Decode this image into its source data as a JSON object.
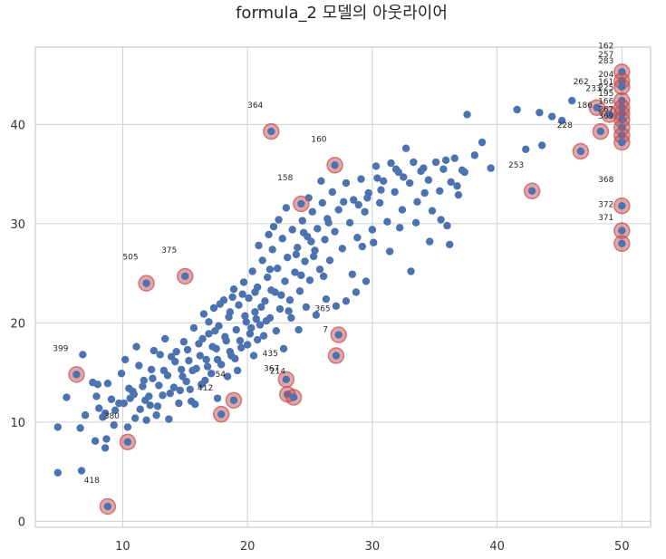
{
  "chart_data": {
    "type": "scatter",
    "title": "formula_2 모델의 아웃라이어",
    "xlabel": "",
    "ylabel": "",
    "xlim": [
      3,
      52.3
    ],
    "ylim": [
      -0.6,
      47.8
    ],
    "xticks": [
      10,
      20,
      30,
      40,
      50
    ],
    "yticks": [
      0,
      10,
      20,
      30,
      40
    ],
    "grid": true,
    "colors": {
      "points": "#4c72b0",
      "outliers": "#c44e52",
      "grid": "#d0d0d0",
      "frame": "#cccccc"
    },
    "outliers": [
      {
        "label": "162",
        "x": 50,
        "y": 45.3
      },
      {
        "label": "257",
        "x": 50,
        "y": 44.4
      },
      {
        "label": "283",
        "x": 50,
        "y": 43.8
      },
      {
        "label": "204",
        "x": 50,
        "y": 42.4
      },
      {
        "label": "161",
        "x": 50,
        "y": 41.7
      },
      {
        "label": "225",
        "x": 50,
        "y": 41.1
      },
      {
        "label": "262",
        "x": 48,
        "y": 41.7
      },
      {
        "label": "195",
        "x": 50,
        "y": 40.5
      },
      {
        "label": "166",
        "x": 50,
        "y": 39.7
      },
      {
        "label": "267",
        "x": 50,
        "y": 38.9
      },
      {
        "label": "369",
        "x": 50,
        "y": 38.2
      },
      {
        "label": "186",
        "x": 48.3,
        "y": 39.3
      },
      {
        "label": "233",
        "x": 49,
        "y": 41
      },
      {
        "label": "228",
        "x": 46.7,
        "y": 37.3
      },
      {
        "label": "253",
        "x": 42.8,
        "y": 33.3
      },
      {
        "label": "368",
        "x": 50,
        "y": 31.8
      },
      {
        "label": "372",
        "x": 50,
        "y": 29.3
      },
      {
        "label": "371",
        "x": 50,
        "y": 28
      },
      {
        "label": "364",
        "x": 21.9,
        "y": 39.3
      },
      {
        "label": "160",
        "x": 27,
        "y": 35.9
      },
      {
        "label": "158",
        "x": 24.3,
        "y": 32
      },
      {
        "label": "505",
        "x": 11.9,
        "y": 24
      },
      {
        "label": "375",
        "x": 15,
        "y": 24.7
      },
      {
        "label": "365",
        "x": 27.3,
        "y": 18.8
      },
      {
        "label": "7",
        "x": 27.1,
        "y": 16.7
      },
      {
        "label": "399",
        "x": 6.3,
        "y": 14.8
      },
      {
        "label": "435",
        "x": 23.1,
        "y": 14.3
      },
      {
        "label": "367",
        "x": 23.2,
        "y": 12.8
      },
      {
        "label": "214",
        "x": 23.7,
        "y": 12.5
      },
      {
        "label": "54",
        "x": 18.9,
        "y": 12.2
      },
      {
        "label": "412",
        "x": 17.9,
        "y": 10.8
      },
      {
        "label": "380",
        "x": 10.4,
        "y": 8
      },
      {
        "label": "418",
        "x": 8.8,
        "y": 1.5
      }
    ],
    "points": [
      [
        4.8,
        9.5
      ],
      [
        4.8,
        4.9
      ],
      [
        5.5,
        12.5
      ],
      [
        6.7,
        5.1
      ],
      [
        6.6,
        9.4
      ],
      [
        6.8,
        16.8
      ],
      [
        7,
        10.7
      ],
      [
        7.6,
        14
      ],
      [
        7.8,
        8.1
      ],
      [
        8.1,
        11.4
      ],
      [
        8.4,
        10.5
      ],
      [
        8.6,
        7.4
      ],
      [
        8.7,
        8.3
      ],
      [
        8.8,
        13.9
      ],
      [
        9.3,
        9.7
      ],
      [
        9.7,
        11.9
      ],
      [
        9.9,
        14.9
      ],
      [
        10.2,
        16.3
      ],
      [
        10.4,
        9.5
      ],
      [
        10.6,
        12.4
      ],
      [
        10.8,
        13.1
      ],
      [
        11.1,
        17.6
      ],
      [
        11.3,
        15.7
      ],
      [
        11.4,
        11.3
      ],
      [
        11.7,
        14.2
      ],
      [
        11.9,
        10.2
      ],
      [
        12.1,
        12.6
      ],
      [
        12.3,
        15.3
      ],
      [
        12.5,
        17.2
      ],
      [
        12.8,
        11.6
      ],
      [
        13,
        16.8
      ],
      [
        13.2,
        12.7
      ],
      [
        13.4,
        18.4
      ],
      [
        13.6,
        14.7
      ],
      [
        13.9,
        16.6
      ],
      [
        14.1,
        13.5
      ],
      [
        14.3,
        17.1
      ],
      [
        14.5,
        11.9
      ],
      [
        14.7,
        15.3
      ],
      [
        14.9,
        18.1
      ],
      [
        15.1,
        14.1
      ],
      [
        15.3,
        16.2
      ],
      [
        15.5,
        12.1
      ],
      [
        15.7,
        19.5
      ],
      [
        15.9,
        15.4
      ],
      [
        16.1,
        17.9
      ],
      [
        16.3,
        13.8
      ],
      [
        16.5,
        20.9
      ],
      [
        16.7,
        16.3
      ],
      [
        16.9,
        18.9
      ],
      [
        17.1,
        14.9
      ],
      [
        17.3,
        21.5
      ],
      [
        17.5,
        17.4
      ],
      [
        17.7,
        19.7
      ],
      [
        17.9,
        15.8
      ],
      [
        18.1,
        22.3
      ],
      [
        18.3,
        18.2
      ],
      [
        18.5,
        20.6
      ],
      [
        18.7,
        16.7
      ],
      [
        18.9,
        23.4
      ],
      [
        19.1,
        19.3
      ],
      [
        19.3,
        21.8
      ],
      [
        19.5,
        17.5
      ],
      [
        19.7,
        24.1
      ],
      [
        19.9,
        20.1
      ],
      [
        20.1,
        22.5
      ],
      [
        20.2,
        18.9
      ],
      [
        20.4,
        25.2
      ],
      [
        20.6,
        21.1
      ],
      [
        20.8,
        23.6
      ],
      [
        21,
        19.8
      ],
      [
        21.2,
        26.3
      ],
      [
        21.4,
        22.2
      ],
      [
        21.6,
        24.6
      ],
      [
        21.8,
        20.5
      ],
      [
        22,
        27.4
      ],
      [
        22.2,
        23.1
      ],
      [
        22.4,
        25.5
      ],
      [
        22.6,
        21.4
      ],
      [
        22.8,
        28.5
      ],
      [
        23,
        24.2
      ],
      [
        23.2,
        26.6
      ],
      [
        23.4,
        22.3
      ],
      [
        23.6,
        29.4
      ],
      [
        23.8,
        25.1
      ],
      [
        24,
        27.6
      ],
      [
        24.2,
        23.2
      ],
      [
        24.4,
        30.3
      ],
      [
        24.6,
        26.2
      ],
      [
        24.8,
        28.7
      ],
      [
        25,
        24.3
      ],
      [
        25.2,
        31.2
      ],
      [
        25.4,
        27.3
      ],
      [
        25.6,
        29.5
      ],
      [
        25.8,
        25.4
      ],
      [
        26,
        32.1
      ],
      [
        26.2,
        28.4
      ],
      [
        26.4,
        30.5
      ],
      [
        26.6,
        26.3
      ],
      [
        26.8,
        33.2
      ],
      [
        27,
        29.2
      ],
      [
        27.3,
        31.4
      ],
      [
        27.6,
        27.5
      ],
      [
        27.9,
        34.1
      ],
      [
        28.2,
        30.1
      ],
      [
        28.5,
        32.4
      ],
      [
        28.8,
        28.6
      ],
      [
        29.1,
        34.5
      ],
      [
        29.4,
        31.2
      ],
      [
        29.7,
        33.1
      ],
      [
        30,
        29.4
      ],
      [
        30.3,
        35.8
      ],
      [
        30.6,
        32.1
      ],
      [
        30.9,
        34.3
      ],
      [
        31.2,
        30.2
      ],
      [
        31.5,
        36.1
      ],
      [
        31.8,
        33.2
      ],
      [
        32.1,
        35.2
      ],
      [
        32.4,
        31.4
      ],
      [
        32.7,
        37.6
      ],
      [
        33,
        34.1
      ],
      [
        33.3,
        36.2
      ],
      [
        33.6,
        32.2
      ],
      [
        33.9,
        35.3
      ],
      [
        34.2,
        33.1
      ],
      [
        34.5,
        34.4
      ],
      [
        34.8,
        31.3
      ],
      [
        35.1,
        36.2
      ],
      [
        35.4,
        33.3
      ],
      [
        35.7,
        35.5
      ],
      [
        36,
        29.8
      ],
      [
        36.3,
        34.2
      ],
      [
        36.6,
        36.6
      ],
      [
        36.9,
        32.9
      ],
      [
        37.2,
        35.4
      ],
      [
        37.6,
        41
      ],
      [
        38.2,
        36.9
      ],
      [
        38.8,
        38.2
      ],
      [
        39.5,
        35.6
      ],
      [
        41.6,
        41.5
      ],
      [
        42.3,
        37.5
      ],
      [
        43.4,
        41.2
      ],
      [
        43.6,
        37.9
      ],
      [
        44.4,
        40.8
      ],
      [
        45.2,
        40.4
      ],
      [
        46,
        42.4
      ],
      [
        8,
        13.8
      ],
      [
        9.1,
        12.3
      ],
      [
        11,
        10.4
      ],
      [
        12.7,
        10.7
      ],
      [
        13.7,
        10.3
      ],
      [
        14.6,
        13.2
      ],
      [
        15.8,
        11.8
      ],
      [
        16.6,
        14.2
      ],
      [
        17.6,
        12.4
      ],
      [
        18.4,
        14.6
      ],
      [
        19.2,
        15.2
      ],
      [
        20.5,
        16.7
      ],
      [
        21.3,
        18.7
      ],
      [
        22.3,
        19.2
      ],
      [
        22.9,
        17.4
      ],
      [
        23.5,
        20.5
      ],
      [
        24.1,
        19.3
      ],
      [
        24.7,
        21.6
      ],
      [
        25.5,
        20.8
      ],
      [
        26.3,
        22.4
      ],
      [
        27.1,
        21.7
      ],
      [
        27.9,
        22.2
      ],
      [
        28.7,
        23.1
      ],
      [
        29.5,
        24.2
      ],
      [
        33.1,
        25.2
      ],
      [
        36.2,
        27.9
      ],
      [
        30.1,
        28.1
      ],
      [
        31.4,
        27.2
      ],
      [
        32.2,
        29.6
      ],
      [
        33.5,
        30.1
      ],
      [
        34.6,
        28.2
      ],
      [
        35.5,
        30.4
      ],
      [
        29.2,
        27.7
      ],
      [
        28.4,
        24.9
      ],
      [
        20.7,
        20.4
      ],
      [
        21.9,
        23.3
      ],
      [
        23.3,
        21.2
      ],
      [
        24.3,
        24.8
      ],
      [
        25.3,
        26.7
      ],
      [
        26.1,
        24.7
      ],
      [
        19.6,
        22.9
      ],
      [
        18.6,
        21.1
      ],
      [
        17.4,
        19.2
      ],
      [
        16.4,
        18.4
      ],
      [
        15.2,
        17.3
      ],
      [
        14.2,
        16.1
      ],
      [
        13.3,
        15.2
      ],
      [
        12.4,
        14.4
      ],
      [
        11.6,
        13.6
      ],
      [
        10.9,
        12.8
      ],
      [
        10.1,
        11.9
      ],
      [
        9.4,
        11.2
      ],
      [
        8.6,
        10.9
      ],
      [
        7.9,
        12.6
      ],
      [
        22.5,
        30.4
      ],
      [
        23.1,
        31.6
      ],
      [
        21.7,
        28.9
      ],
      [
        24.9,
        32.6
      ],
      [
        20.9,
        27.8
      ],
      [
        22.1,
        29.7
      ],
      [
        24.5,
        29.1
      ],
      [
        26.5,
        30.1
      ],
      [
        27.7,
        32.2
      ],
      [
        28.9,
        31.9
      ],
      [
        30.7,
        33.4
      ],
      [
        32.5,
        34.7
      ],
      [
        34.1,
        35.6
      ],
      [
        35.9,
        36.4
      ],
      [
        37.4,
        35.2
      ],
      [
        36.8,
        33.8
      ],
      [
        31.9,
        35.5
      ],
      [
        30.4,
        34.6
      ],
      [
        29.6,
        32.6
      ],
      [
        25.9,
        34.3
      ],
      [
        19.4,
        18.2
      ],
      [
        20.3,
        19.5
      ],
      [
        21.1,
        21.6
      ],
      [
        21.5,
        20.2
      ],
      [
        22.7,
        22.8
      ],
      [
        19.8,
        20.7
      ],
      [
        20.6,
        23.1
      ],
      [
        21.8,
        25.4
      ],
      [
        23.9,
        26.9
      ],
      [
        25.1,
        28.2
      ],
      [
        16.9,
        20.1
      ],
      [
        17.8,
        21.9
      ],
      [
        18.8,
        22.6
      ],
      [
        15.6,
        15.2
      ],
      [
        16.2,
        16.7
      ],
      [
        17.2,
        17.6
      ],
      [
        18.2,
        18.6
      ],
      [
        19,
        16.4
      ],
      [
        20,
        17.8
      ],
      [
        20.8,
        18.3
      ],
      [
        12.9,
        13.7
      ],
      [
        13.8,
        12.9
      ],
      [
        14.8,
        14.6
      ],
      [
        15.4,
        13.3
      ],
      [
        16.8,
        15.6
      ],
      [
        17.6,
        16.3
      ],
      [
        18.6,
        17.1
      ],
      [
        11.8,
        12.2
      ],
      [
        12.2,
        11.7
      ],
      [
        10.5,
        13.4
      ]
    ]
  }
}
